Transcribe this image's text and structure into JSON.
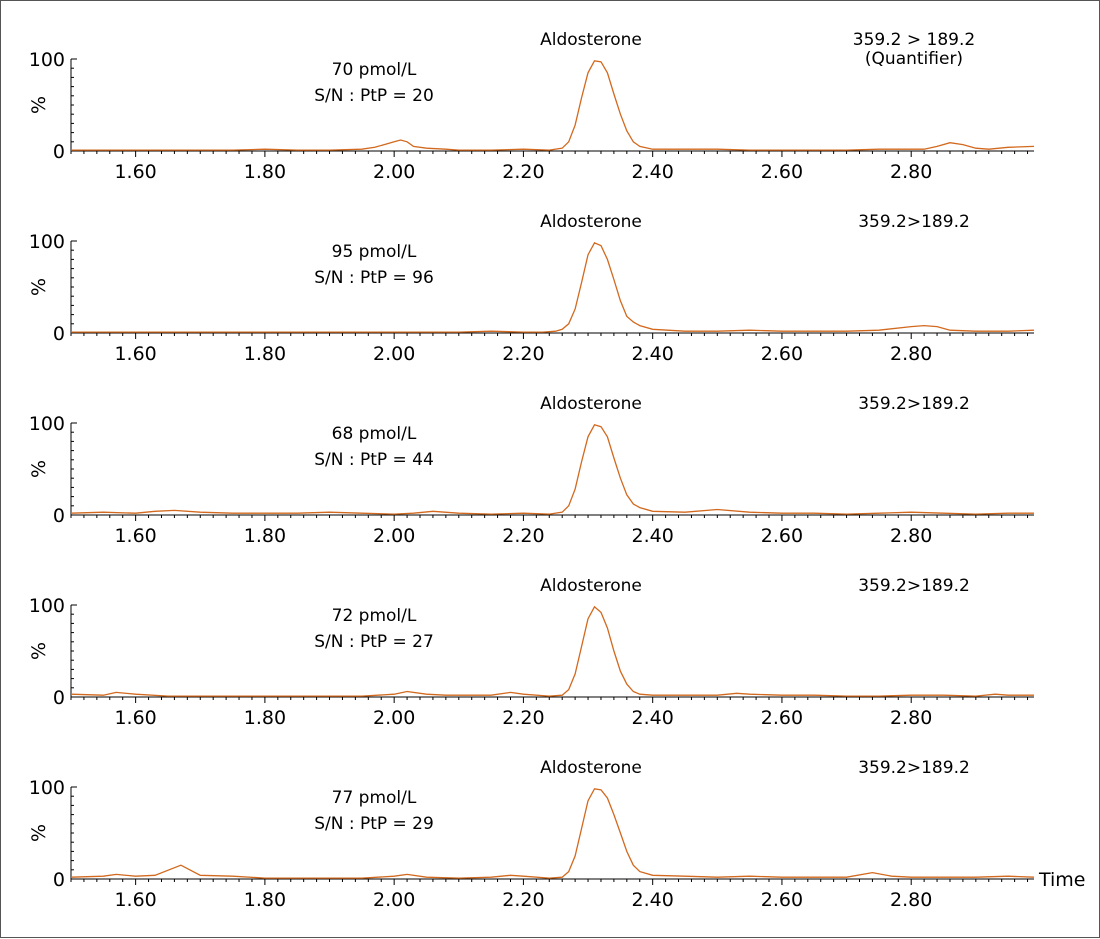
{
  "chart_data": {
    "type": "line",
    "x_axis_label": "Time",
    "xlim": [
      1.5,
      2.99
    ],
    "ylim": [
      0,
      100
    ],
    "x_tick_labels": [
      "1.60",
      "1.80",
      "2.00",
      "2.20",
      "2.40",
      "2.60",
      "2.80"
    ],
    "y_tick_labels": [
      "100",
      "%",
      "0"
    ],
    "series_color": "#D2691E",
    "panels": [
      {
        "compound": "Aldosterone",
        "transition": [
          "359.2 > 189.2",
          "(Quantifier)"
        ],
        "concentration": "70 pmol/L",
        "sn": "S/N : PtP = 20",
        "x": [
          1.5,
          1.55,
          1.6,
          1.65,
          1.7,
          1.75,
          1.8,
          1.85,
          1.9,
          1.95,
          1.97,
          2.0,
          2.01,
          2.02,
          2.03,
          2.05,
          2.08,
          2.1,
          2.15,
          2.2,
          2.24,
          2.26,
          2.27,
          2.28,
          2.29,
          2.3,
          2.31,
          2.32,
          2.33,
          2.34,
          2.35,
          2.36,
          2.37,
          2.38,
          2.4,
          2.45,
          2.5,
          2.55,
          2.6,
          2.65,
          2.7,
          2.75,
          2.8,
          2.82,
          2.84,
          2.86,
          2.88,
          2.9,
          2.92,
          2.95,
          2.99
        ],
        "y": [
          1,
          1,
          1,
          1,
          1,
          1,
          2,
          1,
          1,
          2,
          4,
          10,
          12,
          10,
          5,
          3,
          2,
          1,
          1,
          2,
          1,
          3,
          10,
          28,
          58,
          85,
          98,
          97,
          85,
          62,
          40,
          22,
          10,
          5,
          2,
          2,
          2,
          1,
          1,
          1,
          1,
          2,
          2,
          2,
          5,
          9,
          7,
          3,
          2,
          4,
          5
        ]
      },
      {
        "compound": "Aldosterone",
        "transition": [
          "359.2>189.2"
        ],
        "concentration": "95 pmol/L",
        "sn": "S/N : PtP = 96",
        "x": [
          1.5,
          1.55,
          1.6,
          1.65,
          1.7,
          1.75,
          1.8,
          1.85,
          1.9,
          1.95,
          2.0,
          2.05,
          2.1,
          2.15,
          2.2,
          2.23,
          2.25,
          2.26,
          2.27,
          2.28,
          2.29,
          2.3,
          2.31,
          2.32,
          2.33,
          2.34,
          2.35,
          2.36,
          2.37,
          2.38,
          2.4,
          2.45,
          2.5,
          2.55,
          2.6,
          2.65,
          2.7,
          2.75,
          2.8,
          2.82,
          2.84,
          2.86,
          2.9,
          2.95,
          2.99
        ],
        "y": [
          1,
          1,
          1,
          1,
          1,
          1,
          1,
          1,
          1,
          1,
          1,
          1,
          1,
          2,
          1,
          1,
          2,
          4,
          10,
          26,
          55,
          85,
          98,
          95,
          80,
          58,
          35,
          18,
          12,
          8,
          4,
          2,
          2,
          3,
          2,
          2,
          2,
          3,
          7,
          8,
          7,
          3,
          2,
          2,
          3
        ]
      },
      {
        "compound": "Aldosterone",
        "transition": [
          "359.2>189.2"
        ],
        "concentration": "68 pmol/L",
        "sn": "S/N : PtP = 44",
        "x": [
          1.5,
          1.55,
          1.6,
          1.63,
          1.66,
          1.7,
          1.75,
          1.8,
          1.85,
          1.9,
          1.95,
          2.0,
          2.03,
          2.06,
          2.1,
          2.15,
          2.2,
          2.24,
          2.26,
          2.27,
          2.28,
          2.29,
          2.3,
          2.31,
          2.32,
          2.33,
          2.34,
          2.35,
          2.36,
          2.37,
          2.38,
          2.4,
          2.45,
          2.5,
          2.55,
          2.6,
          2.65,
          2.7,
          2.75,
          2.8,
          2.85,
          2.9,
          2.95,
          2.99
        ],
        "y": [
          2,
          3,
          2,
          4,
          5,
          3,
          2,
          2,
          2,
          3,
          2,
          1,
          2,
          4,
          2,
          1,
          2,
          1,
          3,
          10,
          28,
          58,
          85,
          98,
          96,
          85,
          62,
          40,
          22,
          12,
          8,
          4,
          3,
          6,
          3,
          2,
          2,
          1,
          2,
          3,
          2,
          1,
          2,
          2
        ]
      },
      {
        "compound": "Aldosterone",
        "transition": [
          "359.2>189.2"
        ],
        "concentration": "72 pmol/L",
        "sn": "S/N : PtP = 27",
        "x": [
          1.5,
          1.55,
          1.57,
          1.6,
          1.65,
          1.7,
          1.75,
          1.8,
          1.85,
          1.9,
          1.95,
          2.0,
          2.02,
          2.05,
          2.08,
          2.1,
          2.15,
          2.18,
          2.2,
          2.24,
          2.26,
          2.27,
          2.28,
          2.29,
          2.3,
          2.31,
          2.32,
          2.33,
          2.34,
          2.35,
          2.36,
          2.37,
          2.38,
          2.4,
          2.45,
          2.5,
          2.53,
          2.55,
          2.6,
          2.65,
          2.7,
          2.75,
          2.8,
          2.85,
          2.9,
          2.93,
          2.95,
          2.99
        ],
        "y": [
          3,
          2,
          5,
          3,
          1,
          1,
          1,
          1,
          1,
          1,
          1,
          3,
          6,
          3,
          2,
          2,
          2,
          5,
          3,
          1,
          2,
          8,
          25,
          55,
          85,
          98,
          92,
          75,
          50,
          28,
          14,
          6,
          3,
          2,
          2,
          2,
          4,
          3,
          2,
          2,
          1,
          1,
          2,
          2,
          1,
          3,
          2,
          2
        ]
      },
      {
        "compound": "Aldosterone",
        "transition": [
          "359.2>189.2"
        ],
        "concentration": "77 pmol/L",
        "sn": "S/N : PtP = 29",
        "x": [
          1.5,
          1.55,
          1.57,
          1.6,
          1.63,
          1.67,
          1.7,
          1.75,
          1.8,
          1.85,
          1.9,
          1.95,
          2.0,
          2.02,
          2.05,
          2.1,
          2.15,
          2.18,
          2.2,
          2.24,
          2.26,
          2.27,
          2.28,
          2.29,
          2.3,
          2.31,
          2.32,
          2.33,
          2.34,
          2.35,
          2.36,
          2.37,
          2.38,
          2.4,
          2.45,
          2.5,
          2.55,
          2.6,
          2.65,
          2.7,
          2.74,
          2.77,
          2.8,
          2.85,
          2.9,
          2.95,
          2.99
        ],
        "y": [
          2,
          3,
          5,
          3,
          4,
          15,
          4,
          3,
          1,
          1,
          1,
          1,
          3,
          5,
          2,
          1,
          2,
          4,
          3,
          1,
          2,
          8,
          25,
          55,
          85,
          98,
          97,
          88,
          70,
          50,
          30,
          15,
          8,
          4,
          3,
          2,
          3,
          2,
          2,
          2,
          7,
          3,
          2,
          2,
          2,
          3,
          2
        ]
      }
    ]
  }
}
